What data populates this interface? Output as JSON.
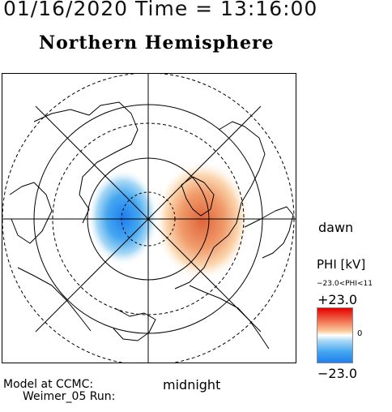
{
  "header": {
    "title": "01/16/2020 Time = 13:16:00",
    "hemisphere": "Northern Hemisphere"
  },
  "labels": {
    "dawn": "dawn",
    "midnight": "midnight",
    "model_line1": "Model at CCMC:",
    "model_line2": "Weimer_05 Run:"
  },
  "colorbar": {
    "title": "PHI [kV]",
    "range_text": "−23.0<PHI<11",
    "max": "+23.0",
    "zero": "0",
    "min": "−23.0",
    "colors": [
      "#e50000",
      "#fbc99c",
      "#ffffff",
      "#a8d8f5",
      "#1e7ef0"
    ]
  },
  "map": {
    "projection": "polar north",
    "potential_cells": [
      {
        "sign": "negative",
        "color": "#1e7ef0"
      },
      {
        "sign": "positive",
        "color": "#e0643a"
      }
    ]
  }
}
